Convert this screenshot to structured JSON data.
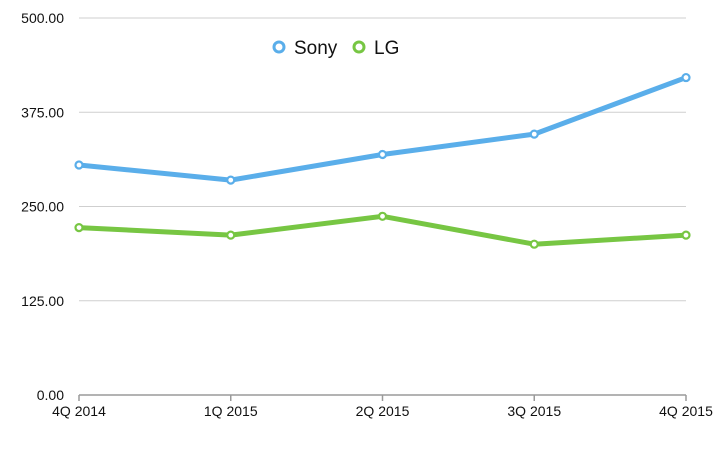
{
  "chart_data": {
    "type": "line",
    "categories": [
      "4Q 2014",
      "1Q 2015",
      "2Q 2015",
      "3Q 2015",
      "4Q 2015"
    ],
    "series": [
      {
        "name": "Sony",
        "color": "#5aaeea",
        "values": [
          305,
          285,
          319,
          346,
          421
        ]
      },
      {
        "name": "LG",
        "color": "#77c643",
        "values": [
          222,
          212,
          237,
          200,
          212
        ]
      }
    ],
    "ylim": [
      0,
      500
    ],
    "yticks": [
      "0.00",
      "125.00",
      "250.00",
      "375.00",
      "500.00"
    ],
    "ytick_values": [
      0,
      125,
      250,
      375,
      500
    ],
    "grid": true,
    "legend_position": "top-center",
    "gridline_color": "#cfcfcf",
    "axis_color": "#9a9a9a"
  }
}
